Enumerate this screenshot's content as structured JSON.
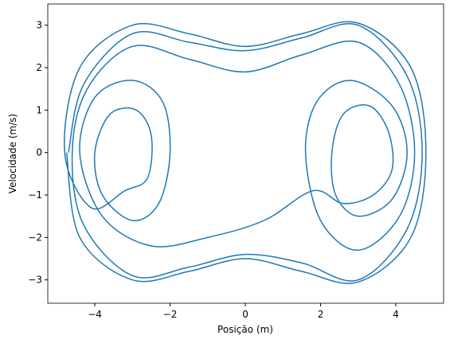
{
  "chart_data": {
    "type": "line",
    "xlabel": "Posição (m)",
    "ylabel": "Velocidade (m/s)",
    "xlim": [
      -5.25,
      5.27
    ],
    "ylim": [
      -3.55,
      3.5
    ],
    "xticks": [
      {
        "value": -4,
        "label": "−4"
      },
      {
        "value": -2,
        "label": "−2"
      },
      0,
      2,
      4
    ],
    "yticks": [
      {
        "value": -3,
        "label": "−3"
      },
      {
        "value": -2,
        "label": "−2"
      },
      {
        "value": -1,
        "label": "−1"
      },
      0,
      1,
      2,
      3
    ],
    "series": [
      {
        "color": "#1f77b4",
        "x": [
          -4.7,
          -4.3,
          -3,
          -1.5,
          0,
          1.5,
          3,
          4.3,
          4.7,
          4.3,
          3,
          1.5,
          0,
          -1.5,
          -3,
          -4.3,
          -4.6,
          -4.2,
          -3,
          -1.5,
          0,
          1.5,
          3,
          4.1,
          4.5,
          4.1,
          3,
          2,
          1.6,
          1.9,
          2.8,
          3.9,
          4.3,
          3.9,
          3,
          2.4,
          2.3,
          2.6,
          3.3,
          3.8,
          3.9,
          3.4,
          2.6,
          1.8,
          0.5,
          -1,
          -2.5,
          -3.8,
          -4.4,
          -4.0,
          -3,
          -2.2,
          -2,
          -2.3,
          -3,
          -3.8,
          -4.0,
          -3.6,
          -2.9,
          -2.5,
          -2.6,
          -3.2,
          -4.1,
          -4.8,
          -4.4,
          -3,
          -1.5,
          0,
          1.5,
          3,
          4.4,
          4.8,
          4.4,
          3,
          1.5,
          0,
          -1.5,
          -3,
          -4.4,
          -4.75
        ],
        "values": [
          0,
          1.6,
          2.8,
          2.6,
          2.4,
          2.7,
          3.0,
          1.8,
          0,
          -1.8,
          -3.0,
          -2.6,
          -2.4,
          -2.7,
          -2.9,
          -1.7,
          0,
          1.5,
          2.5,
          2.2,
          1.9,
          2.3,
          2.6,
          1.6,
          0,
          -1.5,
          -2.3,
          -1.6,
          0,
          1.2,
          1.7,
          1.1,
          0,
          -1.1,
          -1.5,
          -1,
          0,
          0.9,
          1.1,
          0.5,
          -0.4,
          -1.0,
          -1.2,
          -0.9,
          -1.6,
          -2.0,
          -2.2,
          -1.5,
          0,
          1.3,
          1.7,
          1.2,
          0,
          -1.2,
          -1.6,
          -1.0,
          0,
          0.9,
          1.0,
          0.4,
          -0.6,
          -0.9,
          -1.3,
          0,
          2.0,
          3.0,
          2.8,
          2.5,
          2.8,
          3.05,
          2.0,
          0,
          -2.0,
          -3.05,
          -2.8,
          -2.5,
          -2.8,
          -3.0,
          -2,
          0
        ]
      }
    ]
  }
}
